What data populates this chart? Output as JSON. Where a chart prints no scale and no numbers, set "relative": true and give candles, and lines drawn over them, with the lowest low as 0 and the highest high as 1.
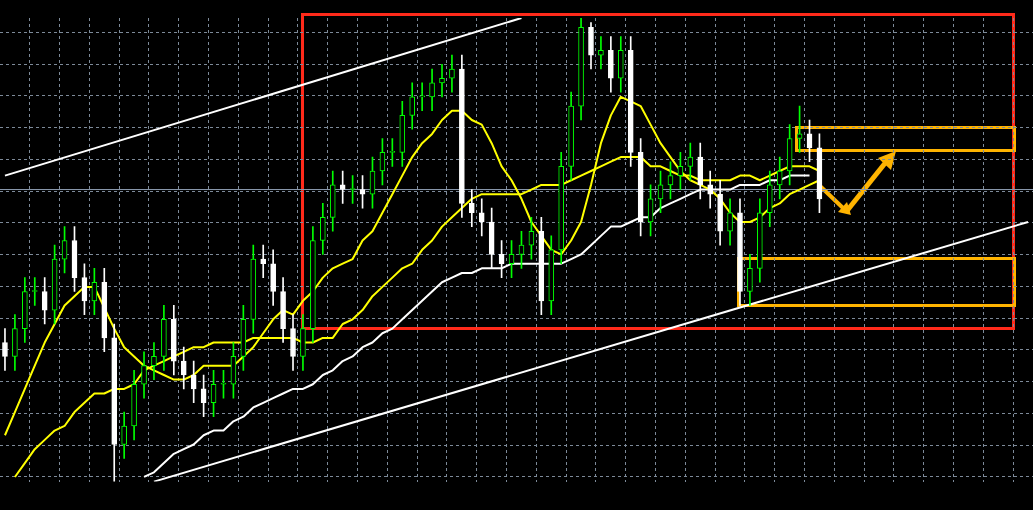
{
  "chart_data": {
    "type": "candlestick",
    "relative": true,
    "grid": true,
    "colors": [
      "#ffffff",
      "#00ff00",
      "#00ff00",
      "#00ff00",
      "#ffffff",
      "#00ff00",
      "#00ff00",
      "#ffffff",
      "#ffffff",
      "#00ff00",
      "#ffffff",
      "#ffffff",
      "#00ff00",
      "#00ff00",
      "#00ff00",
      "#00ff00",
      "#00ff00",
      "#ffffff",
      "#ffffff",
      "#ffffff",
      "#ffffff",
      "#00ff00",
      "#00ff00",
      "#00ff00",
      "#00ff00",
      "#00ff00",
      "#ffffff",
      "#ffffff",
      "#ffffff",
      "#ffffff",
      "#00ff00",
      "#00ff00",
      "#00ff00",
      "#00ff00",
      "#ffffff",
      "#00ff00",
      "#ffffff",
      "#00ff00",
      "#00ff00",
      "#00ff00",
      "#00ff00",
      "#00ff00",
      "#00ff00",
      "#00ff00",
      "#00ff00",
      "#00ff00",
      "#ffffff",
      "#ffffff",
      "#ffffff",
      "#ffffff",
      "#ffffff",
      "#00ff00",
      "#00ff00",
      "#00ff00",
      "#ffffff",
      "#00ff00",
      "#00ff00",
      "#00ff00",
      "#00ff00",
      "#ffffff",
      "#00ff00",
      "#ffffff",
      "#00ff00",
      "#ffffff",
      "#ffffff",
      "#00ff00",
      "#00ff00",
      "#00ff00",
      "#00ff00",
      "#00ff00",
      "#ffffff",
      "#ffffff",
      "#ffffff",
      "#00ff00",
      "#ffffff",
      "#00ff00",
      "#00ff00",
      "#00ff00",
      "#00ff00",
      "#00ff00",
      "#00ff00",
      "#ffffff",
      "#ffffff",
      null,
      null,
      null,
      null,
      null,
      null,
      null,
      null,
      null,
      null,
      null,
      null,
      null,
      null,
      null,
      null,
      null,
      null,
      null,
      null,
      null
    ],
    "categories": [
      null,
      null,
      null,
      null,
      null,
      null,
      null,
      null,
      null,
      null,
      null,
      null,
      null,
      null,
      null,
      null,
      null,
      null,
      null,
      null,
      null,
      null,
      null,
      null,
      null,
      null,
      null,
      null,
      null,
      null,
      null,
      null,
      null,
      null,
      null,
      null,
      null,
      null,
      null,
      null,
      null,
      null,
      null,
      null,
      null,
      null,
      null,
      null,
      null,
      null,
      null,
      null,
      null,
      null,
      null,
      null,
      null,
      null,
      null,
      null,
      null,
      null,
      null,
      null,
      null,
      null,
      null,
      null,
      null,
      null,
      null,
      null,
      null,
      null,
      null,
      null,
      null,
      null,
      null,
      null,
      null,
      null,
      null,
      null,
      null,
      null,
      null,
      null,
      null,
      null,
      null,
      null,
      null,
      null,
      null,
      null,
      null,
      null,
      null,
      null,
      null,
      null,
      null,
      null
    ],
    "ohlc": [
      [
        0.3,
        0.33,
        0.24,
        0.27
      ],
      [
        0.27,
        0.36,
        0.24,
        0.33
      ],
      [
        0.33,
        0.44,
        0.3,
        0.41
      ],
      [
        0.41,
        0.44,
        0.38,
        0.41
      ],
      [
        0.41,
        0.44,
        0.34,
        0.37
      ],
      [
        0.37,
        0.51,
        0.34,
        0.48
      ],
      [
        0.48,
        0.55,
        0.45,
        0.52
      ],
      [
        0.52,
        0.55,
        0.41,
        0.44
      ],
      [
        0.44,
        0.47,
        0.36,
        0.39
      ],
      [
        0.39,
        0.46,
        0.36,
        0.43
      ],
      [
        0.43,
        0.46,
        0.28,
        0.31
      ],
      [
        0.31,
        0.34,
        0.0,
        0.08
      ],
      [
        0.08,
        0.15,
        0.05,
        0.12
      ],
      [
        0.12,
        0.24,
        0.09,
        0.21
      ],
      [
        0.21,
        0.28,
        0.18,
        0.25
      ],
      [
        0.25,
        0.3,
        0.22,
        0.27
      ],
      [
        0.27,
        0.38,
        0.24,
        0.35
      ],
      [
        0.35,
        0.38,
        0.23,
        0.26
      ],
      [
        0.26,
        0.29,
        0.2,
        0.23
      ],
      [
        0.23,
        0.26,
        0.17,
        0.2
      ],
      [
        0.2,
        0.23,
        0.14,
        0.17
      ],
      [
        0.17,
        0.24,
        0.14,
        0.21
      ],
      [
        0.21,
        0.24,
        0.18,
        0.21
      ],
      [
        0.21,
        0.3,
        0.18,
        0.27
      ],
      [
        0.27,
        0.38,
        0.24,
        0.35
      ],
      [
        0.35,
        0.51,
        0.32,
        0.48
      ],
      [
        0.48,
        0.51,
        0.44,
        0.47
      ],
      [
        0.47,
        0.5,
        0.38,
        0.41
      ],
      [
        0.41,
        0.44,
        0.3,
        0.33
      ],
      [
        0.33,
        0.36,
        0.24,
        0.27
      ],
      [
        0.27,
        0.36,
        0.24,
        0.33
      ],
      [
        0.33,
        0.55,
        0.3,
        0.52
      ],
      [
        0.52,
        0.6,
        0.49,
        0.57
      ],
      [
        0.57,
        0.67,
        0.54,
        0.64
      ],
      [
        0.64,
        0.67,
        0.6,
        0.63
      ],
      [
        0.63,
        0.66,
        0.6,
        0.63
      ],
      [
        0.63,
        0.66,
        0.59,
        0.62
      ],
      [
        0.62,
        0.7,
        0.59,
        0.67
      ],
      [
        0.67,
        0.74,
        0.64,
        0.71
      ],
      [
        0.71,
        0.74,
        0.68,
        0.71
      ],
      [
        0.71,
        0.82,
        0.68,
        0.79
      ],
      [
        0.79,
        0.86,
        0.76,
        0.83
      ],
      [
        0.83,
        0.86,
        0.8,
        0.83
      ],
      [
        0.83,
        0.89,
        0.8,
        0.86
      ],
      [
        0.86,
        0.9,
        0.83,
        0.87
      ],
      [
        0.87,
        0.92,
        0.84,
        0.89
      ],
      [
        0.89,
        0.92,
        0.57,
        0.6
      ],
      [
        0.6,
        0.63,
        0.55,
        0.58
      ],
      [
        0.58,
        0.61,
        0.53,
        0.56
      ],
      [
        0.56,
        0.59,
        0.46,
        0.49
      ],
      [
        0.49,
        0.52,
        0.44,
        0.47
      ],
      [
        0.47,
        0.52,
        0.44,
        0.49
      ],
      [
        0.49,
        0.54,
        0.46,
        0.51
      ],
      [
        0.51,
        0.57,
        0.48,
        0.54
      ],
      [
        0.54,
        0.57,
        0.36,
        0.39
      ],
      [
        0.39,
        0.53,
        0.36,
        0.5
      ],
      [
        0.5,
        0.71,
        0.47,
        0.68
      ],
      [
        0.68,
        0.84,
        0.65,
        0.81
      ],
      [
        0.81,
        1.0,
        0.78,
        0.98
      ],
      [
        0.98,
        0.99,
        0.89,
        0.92
      ],
      [
        0.92,
        0.96,
        0.89,
        0.93
      ],
      [
        0.93,
        0.96,
        0.84,
        0.87
      ],
      [
        0.87,
        0.96,
        0.84,
        0.93
      ],
      [
        0.93,
        0.96,
        0.68,
        0.71
      ],
      [
        0.71,
        0.74,
        0.53,
        0.56
      ],
      [
        0.56,
        0.64,
        0.53,
        0.61
      ],
      [
        0.61,
        0.67,
        0.58,
        0.64
      ],
      [
        0.64,
        0.69,
        0.61,
        0.66
      ],
      [
        0.66,
        0.71,
        0.63,
        0.68
      ],
      [
        0.68,
        0.73,
        0.65,
        0.7
      ],
      [
        0.7,
        0.73,
        0.61,
        0.64
      ],
      [
        0.64,
        0.67,
        0.59,
        0.62
      ],
      [
        0.62,
        0.65,
        0.51,
        0.54
      ],
      [
        0.54,
        0.61,
        0.51,
        0.58
      ],
      [
        0.58,
        0.61,
        0.38,
        0.41
      ],
      [
        0.41,
        0.49,
        0.38,
        0.46
      ],
      [
        0.46,
        0.61,
        0.43,
        0.58
      ],
      [
        0.58,
        0.67,
        0.55,
        0.64
      ],
      [
        0.64,
        0.7,
        0.61,
        0.67
      ],
      [
        0.67,
        0.77,
        0.64,
        0.74
      ],
      [
        0.74,
        0.81,
        0.71,
        0.75
      ],
      [
        0.75,
        0.78,
        0.69,
        0.72
      ],
      [
        0.72,
        0.75,
        0.58,
        0.61
      ],
      null,
      null,
      null,
      null,
      null,
      null,
      null,
      null,
      null,
      null,
      null,
      null,
      null,
      null,
      null,
      null,
      null,
      null,
      null,
      null,
      null
    ],
    "series": [
      {
        "type": "line",
        "color": "#ffff00",
        "values": [
          0.1,
          0.15,
          0.2,
          0.25,
          0.3,
          0.34,
          0.38,
          0.4,
          0.42,
          0.42,
          null,
          0.33,
          0.29,
          0.27,
          0.25,
          0.24,
          0.23,
          0.22,
          0.22,
          0.23,
          0.25,
          0.25,
          0.25,
          0.25,
          0.27,
          0.29,
          0.32,
          0.35,
          0.37,
          0.36,
          0.39,
          0.41,
          0.44,
          0.46,
          0.47,
          0.48,
          0.52,
          0.54,
          0.58,
          0.62,
          0.66,
          0.7,
          0.73,
          0.75,
          0.78,
          0.8,
          0.8,
          0.78,
          0.77,
          0.73,
          0.68,
          0.65,
          0.61,
          0.56,
          0.53,
          0.5,
          0.49,
          0.52,
          0.56,
          0.64,
          0.73,
          0.79,
          0.83,
          0.82,
          0.81,
          0.77,
          0.73,
          0.7,
          0.67,
          0.65,
          0.64,
          0.63,
          0.61,
          0.58,
          0.56,
          0.56,
          0.57,
          0.59,
          0.6,
          0.62,
          0.63,
          0.64,
          0.65,
          null,
          null,
          null,
          null,
          null,
          null,
          null,
          null,
          null,
          null,
          null,
          null,
          null,
          null,
          null,
          null,
          null,
          null,
          null,
          null,
          null
        ]
      },
      {
        "type": "line",
        "color": "#ffff00",
        "values": [
          null,
          0.01,
          0.04,
          0.07,
          0.09,
          0.11,
          0.12,
          0.15,
          0.17,
          0.19,
          0.19,
          0.2,
          0.2,
          0.21,
          0.24,
          0.25,
          0.26,
          0.27,
          0.28,
          0.29,
          0.29,
          0.3,
          0.3,
          0.3,
          0.3,
          0.31,
          0.31,
          0.31,
          0.31,
          0.31,
          0.3,
          0.3,
          0.31,
          0.31,
          0.34,
          0.35,
          0.37,
          0.4,
          0.42,
          0.44,
          0.46,
          0.47,
          0.5,
          0.52,
          0.55,
          0.57,
          0.59,
          0.61,
          0.62,
          0.62,
          0.62,
          0.62,
          0.62,
          0.63,
          0.64,
          0.64,
          0.64,
          0.65,
          0.66,
          0.67,
          0.68,
          0.69,
          0.7,
          0.7,
          0.7,
          0.68,
          0.68,
          0.67,
          0.66,
          0.66,
          0.65,
          0.65,
          0.65,
          0.65,
          0.66,
          0.66,
          0.65,
          0.66,
          0.67,
          0.68,
          0.68,
          0.68,
          0.67,
          null,
          null,
          null,
          null,
          null,
          null,
          null,
          null,
          null,
          null,
          null,
          null,
          null,
          null,
          null,
          null,
          null,
          null,
          null,
          null,
          null
        ]
      },
      {
        "type": "line",
        "color": "#ffffff",
        "values": [
          null,
          null,
          null,
          null,
          null,
          null,
          null,
          null,
          null,
          null,
          null,
          null,
          null,
          null,
          0.01,
          0.02,
          0.04,
          0.06,
          0.07,
          0.08,
          0.1,
          0.11,
          0.11,
          0.13,
          0.14,
          0.16,
          0.17,
          0.18,
          0.19,
          0.2,
          0.2,
          0.21,
          0.23,
          0.24,
          0.26,
          0.27,
          0.29,
          0.3,
          0.32,
          0.33,
          0.35,
          0.37,
          0.39,
          0.41,
          0.43,
          0.44,
          0.45,
          0.45,
          0.46,
          0.46,
          0.46,
          0.47,
          0.47,
          0.47,
          0.47,
          0.47,
          0.47,
          0.48,
          0.49,
          0.51,
          0.53,
          0.55,
          0.55,
          0.56,
          0.57,
          0.57,
          0.59,
          0.6,
          0.61,
          0.62,
          0.63,
          0.63,
          0.63,
          0.63,
          0.64,
          0.64,
          0.64,
          0.65,
          0.65,
          0.66,
          0.66,
          0.66,
          null,
          null,
          null,
          null,
          null,
          null,
          null,
          null,
          null,
          null,
          null,
          null,
          null,
          null,
          null,
          null,
          null,
          null,
          null,
          null,
          null,
          null
        ]
      },
      {
        "type": "line",
        "color": "#ffffff",
        "values": [
          0.66,
          null,
          null,
          null,
          null,
          null,
          null,
          null,
          null,
          null,
          null,
          null,
          null,
          null,
          null,
          null,
          null,
          null,
          null,
          null,
          null,
          null,
          null,
          null,
          null,
          null,
          null,
          null,
          null,
          null,
          null,
          null,
          null,
          null,
          null,
          null,
          null,
          null,
          null,
          null,
          null,
          null,
          null,
          null,
          null,
          null,
          null,
          null,
          null,
          null,
          null,
          null,
          1.0,
          null,
          null,
          null,
          null,
          null,
          null,
          null,
          null,
          null,
          null,
          null,
          null,
          null,
          null,
          null,
          null,
          null,
          null,
          null,
          null,
          null,
          null,
          null,
          null,
          null,
          null,
          null,
          null,
          null,
          null,
          null,
          null,
          null,
          null,
          null,
          null,
          null,
          null,
          null,
          null,
          null,
          null,
          null,
          null,
          null,
          null,
          null,
          null,
          null,
          null,
          null
        ]
      },
      {
        "type": "line",
        "color": "#ffffff",
        "values": [
          null,
          null,
          null,
          null,
          null,
          null,
          null,
          null,
          null,
          null,
          null,
          null,
          null,
          null,
          null,
          0.0,
          null,
          null,
          null,
          null,
          null,
          null,
          null,
          null,
          null,
          null,
          null,
          null,
          null,
          null,
          null,
          null,
          null,
          null,
          null,
          null,
          null,
          null,
          null,
          null,
          null,
          null,
          null,
          null,
          null,
          null,
          null,
          null,
          null,
          null,
          null,
          null,
          null,
          null,
          null,
          null,
          null,
          null,
          null,
          null,
          null,
          null,
          null,
          null,
          null,
          null,
          null,
          null,
          null,
          null,
          null,
          null,
          null,
          null,
          null,
          null,
          null,
          null,
          null,
          null,
          null,
          null,
          null,
          null,
          null,
          null,
          null,
          null,
          null,
          null,
          null,
          null,
          null,
          null,
          null,
          null,
          null,
          null,
          null,
          null,
          null,
          null,
          null,
          0.56
        ]
      }
    ],
    "ref_lines": [
      {
        "axis": "y",
        "value": 0.63,
        "color": "#8c9bb0"
      }
    ]
  }
}
